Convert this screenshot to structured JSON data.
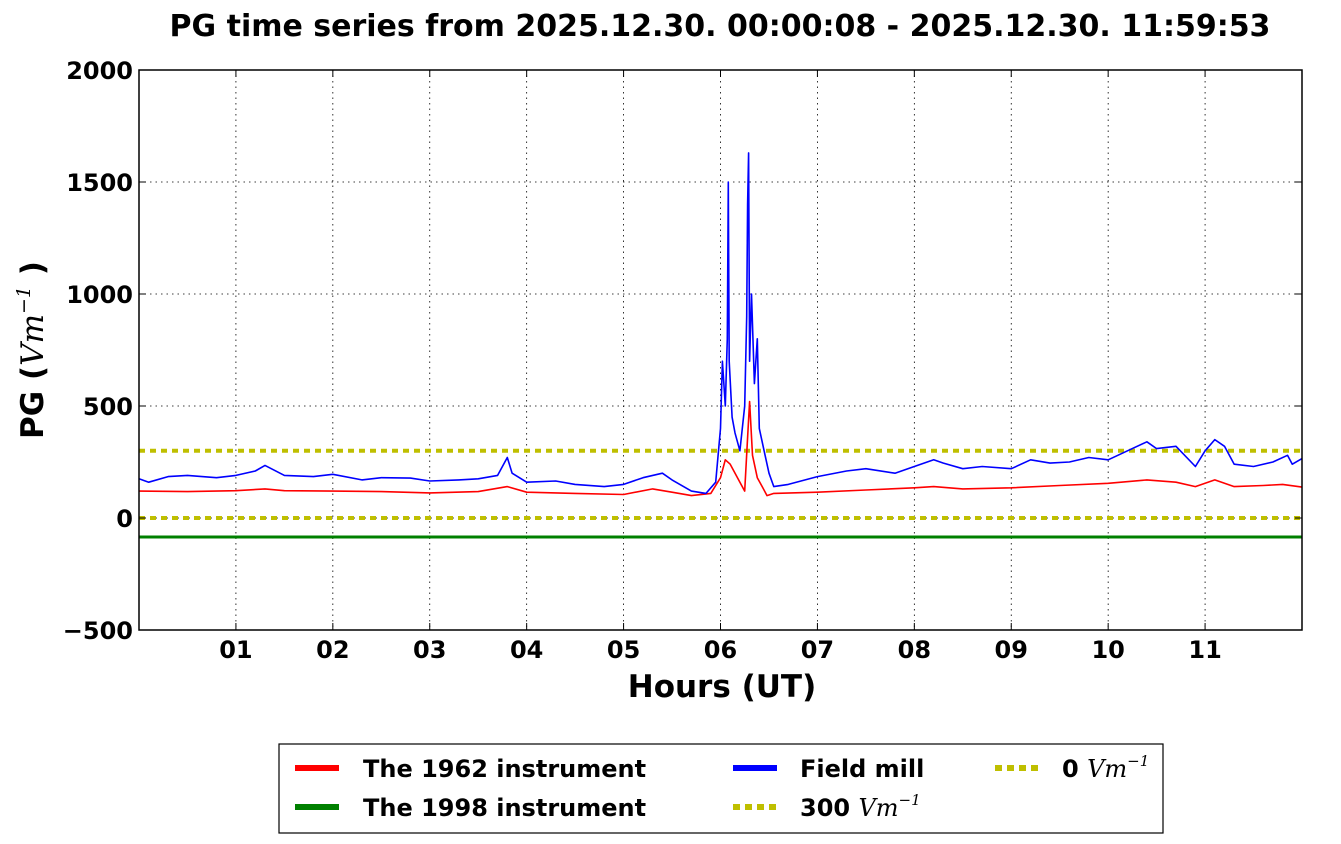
{
  "chart_data": {
    "type": "line",
    "title": "PG time series from 2025.12.30. 00:00:08 - 2025.12.30. 11:59:53",
    "xlabel": "Hours (UT)",
    "ylabel": {
      "prefix": "PG (",
      "unit": "Vm",
      "exp": "−1",
      "suffix": " )"
    },
    "xlim": [
      0,
      12
    ],
    "ylim": [
      -500,
      2000
    ],
    "xticks": [
      1,
      2,
      3,
      4,
      5,
      6,
      7,
      8,
      9,
      10,
      11
    ],
    "xtick_labels": [
      "01",
      "02",
      "03",
      "04",
      "05",
      "06",
      "07",
      "08",
      "09",
      "10",
      "11"
    ],
    "yticks": [
      -500,
      0,
      500,
      1000,
      1500,
      2000
    ],
    "ytick_labels": [
      "−500",
      "0",
      "500",
      "1000",
      "1500",
      "2000"
    ],
    "grid": true,
    "legend_placement": "bottom-center-outside",
    "series": [
      {
        "name": "The 1962 instrument",
        "color": "#ff0000",
        "style": "solid",
        "points": [
          [
            0,
            120
          ],
          [
            0.5,
            118
          ],
          [
            1,
            122
          ],
          [
            1.3,
            130
          ],
          [
            1.5,
            122
          ],
          [
            2,
            120
          ],
          [
            2.5,
            118
          ],
          [
            3,
            112
          ],
          [
            3.5,
            118
          ],
          [
            3.8,
            140
          ],
          [
            4,
            115
          ],
          [
            4.5,
            110
          ],
          [
            5,
            105
          ],
          [
            5.3,
            130
          ],
          [
            5.5,
            115
          ],
          [
            5.7,
            100
          ],
          [
            5.9,
            110
          ],
          [
            6.0,
            180
          ],
          [
            6.05,
            260
          ],
          [
            6.1,
            240
          ],
          [
            6.2,
            160
          ],
          [
            6.25,
            120
          ],
          [
            6.28,
            360
          ],
          [
            6.3,
            520
          ],
          [
            6.33,
            280
          ],
          [
            6.38,
            180
          ],
          [
            6.43,
            140
          ],
          [
            6.48,
            100
          ],
          [
            6.55,
            110
          ],
          [
            7,
            115
          ],
          [
            7.5,
            125
          ],
          [
            8,
            135
          ],
          [
            8.2,
            140
          ],
          [
            8.5,
            130
          ],
          [
            9,
            135
          ],
          [
            9.5,
            145
          ],
          [
            10,
            155
          ],
          [
            10.4,
            170
          ],
          [
            10.7,
            160
          ],
          [
            10.9,
            140
          ],
          [
            11.1,
            170
          ],
          [
            11.3,
            140
          ],
          [
            11.6,
            145
          ],
          [
            11.8,
            150
          ],
          [
            12,
            138
          ]
        ]
      },
      {
        "name": "The 1998 instrument",
        "color": "#008000",
        "style": "solid",
        "points": [
          [
            0,
            -85
          ],
          [
            12,
            -85
          ]
        ]
      },
      {
        "name": "Field mill",
        "color": "#0000ff",
        "style": "solid",
        "points": [
          [
            0,
            175
          ],
          [
            0.1,
            160
          ],
          [
            0.3,
            185
          ],
          [
            0.5,
            190
          ],
          [
            0.8,
            180
          ],
          [
            1,
            190
          ],
          [
            1.2,
            210
          ],
          [
            1.3,
            235
          ],
          [
            1.5,
            190
          ],
          [
            1.8,
            185
          ],
          [
            2,
            195
          ],
          [
            2.3,
            170
          ],
          [
            2.5,
            180
          ],
          [
            2.8,
            178
          ],
          [
            3,
            165
          ],
          [
            3.3,
            170
          ],
          [
            3.5,
            175
          ],
          [
            3.7,
            190
          ],
          [
            3.8,
            270
          ],
          [
            3.85,
            200
          ],
          [
            4,
            160
          ],
          [
            4.3,
            165
          ],
          [
            4.5,
            150
          ],
          [
            4.8,
            140
          ],
          [
            5,
            150
          ],
          [
            5.2,
            180
          ],
          [
            5.4,
            200
          ],
          [
            5.5,
            170
          ],
          [
            5.7,
            120
          ],
          [
            5.85,
            110
          ],
          [
            5.95,
            160
          ],
          [
            6.0,
            400
          ],
          [
            6.02,
            700
          ],
          [
            6.05,
            500
          ],
          [
            6.07,
            800
          ],
          [
            6.08,
            1500
          ],
          [
            6.09,
            700
          ],
          [
            6.12,
            450
          ],
          [
            6.15,
            380
          ],
          [
            6.2,
            300
          ],
          [
            6.25,
            500
          ],
          [
            6.27,
            900
          ],
          [
            6.28,
            1400
          ],
          [
            6.29,
            1630
          ],
          [
            6.3,
            700
          ],
          [
            6.32,
            1000
          ],
          [
            6.35,
            600
          ],
          [
            6.38,
            800
          ],
          [
            6.4,
            400
          ],
          [
            6.45,
            300
          ],
          [
            6.5,
            200
          ],
          [
            6.55,
            140
          ],
          [
            6.7,
            150
          ],
          [
            7,
            185
          ],
          [
            7.3,
            210
          ],
          [
            7.5,
            220
          ],
          [
            7.8,
            200
          ],
          [
            8,
            230
          ],
          [
            8.2,
            260
          ],
          [
            8.3,
            245
          ],
          [
            8.5,
            220
          ],
          [
            8.7,
            230
          ],
          [
            9,
            220
          ],
          [
            9.2,
            260
          ],
          [
            9.4,
            245
          ],
          [
            9.6,
            250
          ],
          [
            9.8,
            270
          ],
          [
            10,
            260
          ],
          [
            10.2,
            300
          ],
          [
            10.4,
            340
          ],
          [
            10.5,
            310
          ],
          [
            10.7,
            320
          ],
          [
            10.9,
            230
          ],
          [
            11.0,
            300
          ],
          [
            11.1,
            350
          ],
          [
            11.2,
            320
          ],
          [
            11.3,
            240
          ],
          [
            11.5,
            230
          ],
          [
            11.7,
            250
          ],
          [
            11.85,
            280
          ],
          [
            11.9,
            240
          ],
          [
            12,
            265
          ]
        ]
      },
      {
        "name": "300 Vm-1",
        "color": "#bfbf00",
        "style": "dotted",
        "points": [
          [
            0,
            300
          ],
          [
            12,
            300
          ]
        ]
      },
      {
        "name": "0 Vm-1",
        "color": "#bfbf00",
        "style": "dotted",
        "points": [
          [
            0,
            0
          ],
          [
            12,
            0
          ]
        ]
      }
    ],
    "legend_entries": [
      {
        "label": "The 1962 instrument",
        "color": "#ff0000",
        "style": "solid"
      },
      {
        "label": "The 1998 instrument",
        "color": "#008000",
        "style": "solid"
      },
      {
        "label": "Field mill",
        "color": "#0000ff",
        "style": "solid"
      },
      {
        "prefix": "300 ",
        "unit": "Vm",
        "exp": "−1",
        "color": "#bfbf00",
        "style": "dotted"
      },
      {
        "prefix": "0 ",
        "unit": "Vm",
        "exp": "−1",
        "color": "#bfbf00",
        "style": "dotted"
      }
    ]
  }
}
